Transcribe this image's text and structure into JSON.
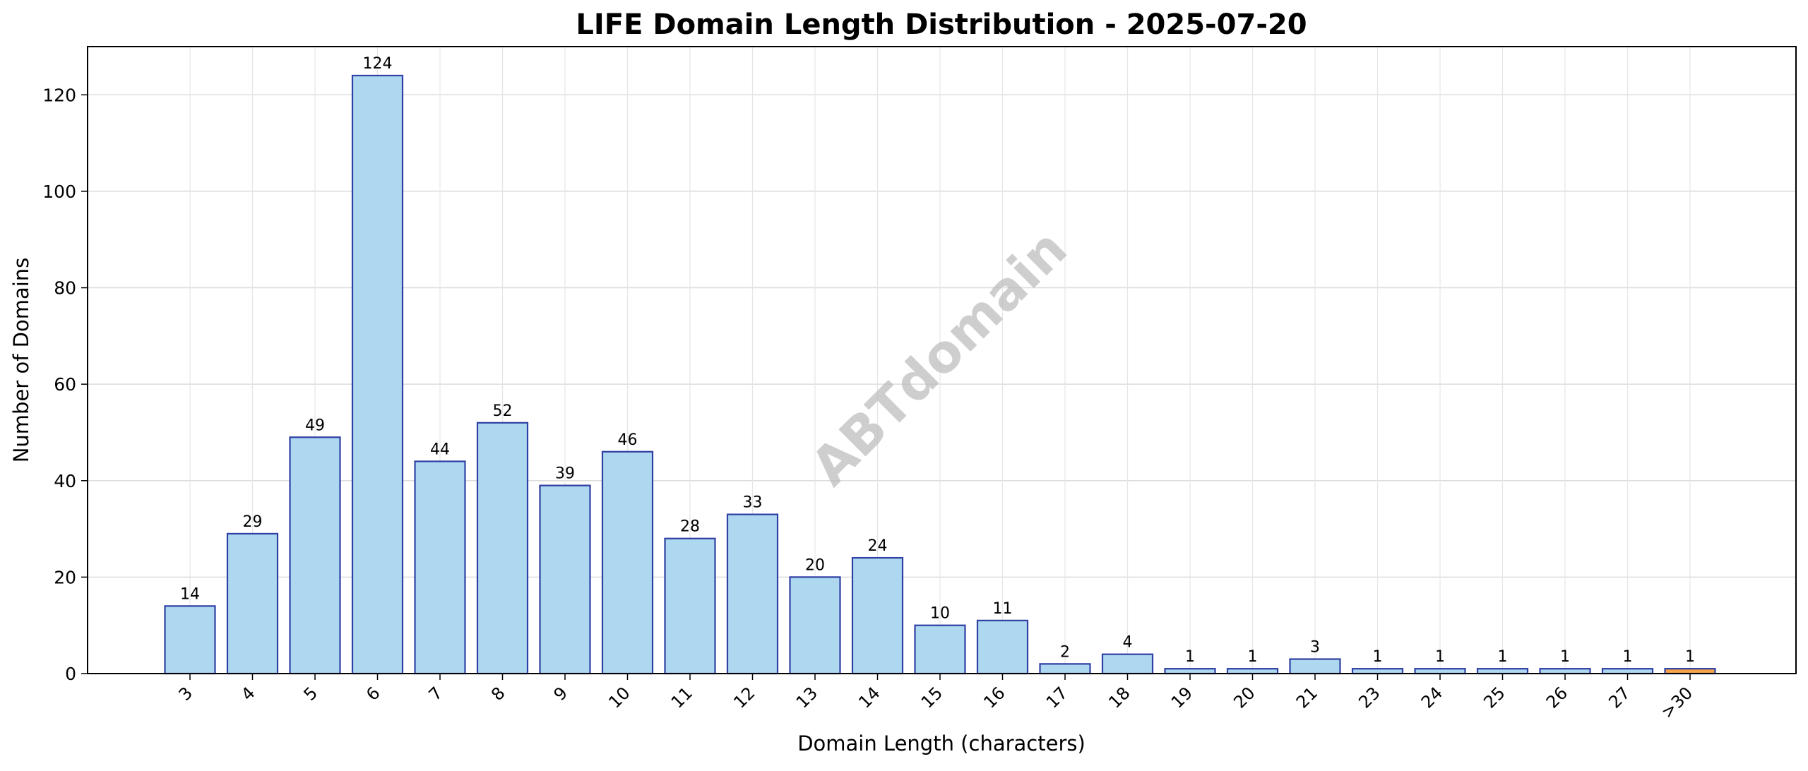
{
  "chart_data": {
    "type": "bar",
    "title": "LIFE Domain Length Distribution - 2025-07-20",
    "xlabel": "Domain Length (characters)",
    "ylabel": "Number of Domains",
    "categories": [
      "3",
      "4",
      "5",
      "6",
      "7",
      "8",
      "9",
      "10",
      "11",
      "12",
      "13",
      "14",
      "15",
      "16",
      "17",
      "18",
      "19",
      "20",
      "21",
      "23",
      "24",
      "25",
      "26",
      "27",
      ">30"
    ],
    "values": [
      14,
      29,
      49,
      124,
      44,
      52,
      39,
      46,
      28,
      33,
      20,
      24,
      10,
      11,
      2,
      4,
      1,
      1,
      3,
      1,
      1,
      1,
      1,
      1,
      1
    ],
    "ylim": [
      0,
      130
    ],
    "yticks": [
      0,
      20,
      40,
      60,
      80,
      100,
      120
    ],
    "grid": true,
    "colors": {
      "bar_fill": "#add8ef",
      "bar_edge": "#2f3fa3",
      "highlight_fill": "#f5a447",
      "highlight_category": ">30"
    }
  },
  "watermark": "ABTdomain"
}
